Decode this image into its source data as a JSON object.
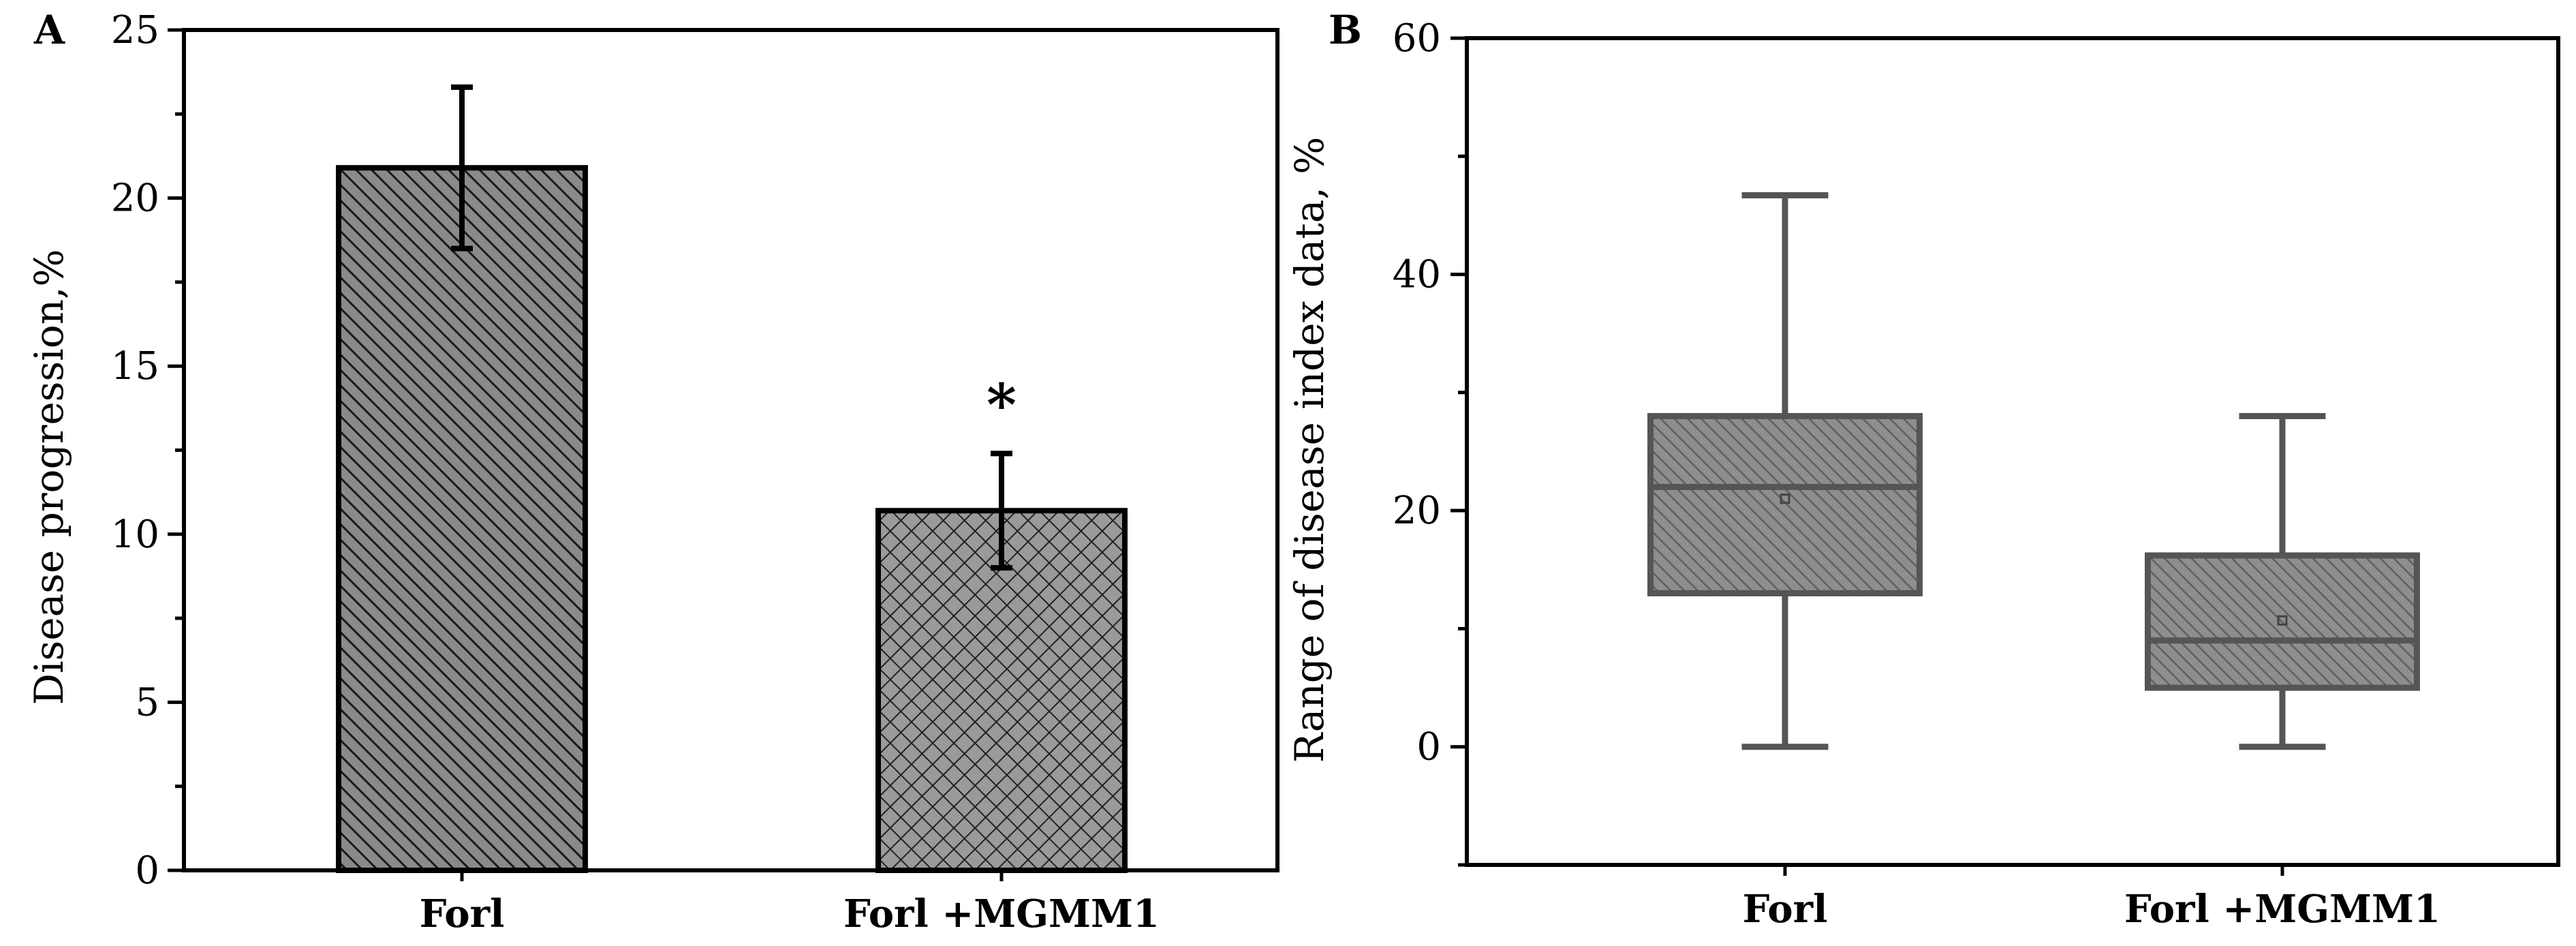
{
  "chart_data": [
    {
      "panel": "A",
      "type": "bar",
      "title": "",
      "xlabel": "",
      "ylabel": "Disease progression,%",
      "ylim": [
        0,
        25
      ],
      "yticks": [
        0,
        5,
        10,
        15,
        20,
        25
      ],
      "categories": [
        "Forl",
        "Forl +MGMM1"
      ],
      "values": [
        20.9,
        10.7
      ],
      "errors": [
        2.4,
        1.7
      ],
      "annotations": [
        "",
        "*"
      ],
      "colors": {
        "bar_fill": "#7a7a7a",
        "bar_edge": "#000000",
        "hatch_line": "#1a1a1a",
        "axis": "#000000"
      }
    },
    {
      "panel": "B",
      "type": "box",
      "title": "",
      "xlabel": "",
      "ylabel": "Range of disease index data, %",
      "ylim": [
        -10,
        60
      ],
      "yticks": [
        0,
        20,
        40,
        60
      ],
      "categories": [
        "Forl",
        "Forl +MGMM1"
      ],
      "boxes": [
        {
          "whisker_low": 0,
          "q1": 13,
          "median": 22,
          "q3": 28,
          "whisker_high": 46.7,
          "mean": 21
        },
        {
          "whisker_low": 0,
          "q1": 5,
          "median": 9,
          "q3": 16.2,
          "whisker_high": 28,
          "mean": 10.7
        }
      ],
      "colors": {
        "box_fill": "#8c8c8c",
        "box_edge": "#555555",
        "hatch_line": "#5f5f5f",
        "axis": "#000000"
      }
    }
  ]
}
